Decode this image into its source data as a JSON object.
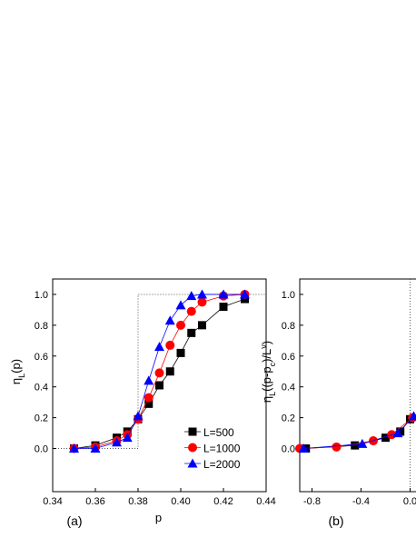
{
  "chart_data": [
    {
      "type": "line",
      "panel_label": "(a)",
      "xlabel": "p",
      "ylabel": [
        {
          "text": "η"
        },
        {
          "text": "L",
          "sub": true
        },
        {
          "text": "(p)"
        }
      ],
      "x": [
        0.35,
        0.36,
        0.37,
        0.375,
        0.38,
        0.385,
        0.39,
        0.395,
        0.4,
        0.405,
        0.41,
        0.42,
        0.43
      ],
      "series": [
        {
          "name": "L=500",
          "color": "#000000",
          "marker": "square",
          "values": [
            0.0,
            0.02,
            0.07,
            0.11,
            0.19,
            0.29,
            0.41,
            0.5,
            0.62,
            0.75,
            0.8,
            0.92,
            0.97
          ]
        },
        {
          "name": "L=1000",
          "color": "#ff0000",
          "marker": "circle",
          "values": [
            0.0,
            0.01,
            0.05,
            0.09,
            0.19,
            0.33,
            0.49,
            0.67,
            0.8,
            0.89,
            0.95,
            0.99,
            1.0
          ]
        },
        {
          "name": "L=2000",
          "color": "#0000ff",
          "marker": "triangle",
          "values": [
            0.0,
            0.0,
            0.04,
            0.07,
            0.21,
            0.44,
            0.66,
            0.83,
            0.93,
            0.99,
            1.0,
            1.0,
            1.0
          ]
        }
      ],
      "threshold": 0.38,
      "xlim": [
        0.34,
        0.44
      ],
      "xticks": [
        0.34,
        0.36,
        0.38,
        {
          "value": 0.4,
          "label": "0.40"
        },
        0.42,
        0.44
      ],
      "ylim": [
        -0.28,
        1.1
      ],
      "yticks": [
        {
          "value": 0,
          "label": "0.0"
        },
        0.2,
        0.4,
        0.6,
        0.8,
        {
          "value": 1,
          "label": "1.0"
        }
      ],
      "legend": "lower-right"
    },
    {
      "type": "scatter",
      "panel_label": "(b)",
      "ylabel": [
        {
          "text": "η"
        },
        {
          "text": "L",
          "sub": true
        },
        {
          "text": "((p-p"
        },
        {
          "text": "c",
          "sub": true
        },
        {
          "text": ")/L"
        },
        {
          "text": "ν",
          "sup": true
        },
        {
          "text": ")"
        }
      ],
      "series": [
        {
          "color": "#000000",
          "marker": "square",
          "x": [
            -0.85,
            -0.45,
            -0.2,
            -0.08,
            0.0
          ],
          "values": [
            0.0,
            0.02,
            0.07,
            0.11,
            0.19
          ]
        },
        {
          "color": "#ff0000",
          "marker": "circle",
          "x": [
            -0.9,
            -0.6,
            -0.3,
            -0.15,
            0.02
          ],
          "values": [
            0.0,
            0.01,
            0.05,
            0.09,
            0.2
          ]
        },
        {
          "color": "#0000ff",
          "marker": "triangle",
          "x": [
            -0.87,
            -0.39,
            -0.1,
            0.03
          ],
          "values": [
            0.0,
            0.03,
            0.1,
            0.21
          ]
        }
      ],
      "threshold": 0,
      "xlim": [
        -0.9,
        0.9
      ],
      "xticks": [
        -0.8,
        -0.4,
        {
          "value": 0,
          "label": "0.0"
        }
      ],
      "ylim": [
        -0.28,
        1.1
      ],
      "yticks": [
        {
          "value": 0,
          "label": "0.0"
        },
        0.2,
        0.4,
        0.6,
        0.8,
        {
          "value": 1,
          "label": "1.0"
        }
      ]
    }
  ]
}
